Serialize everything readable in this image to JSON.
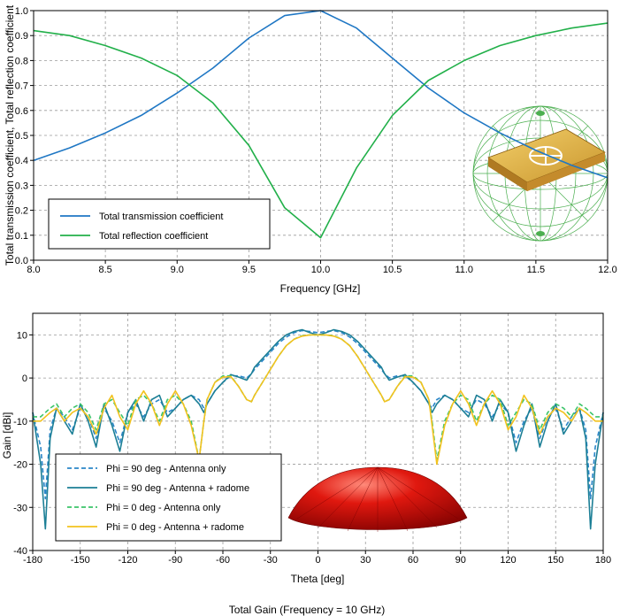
{
  "chart_data": [
    {
      "type": "line",
      "xlabel": "Frequency [GHz]",
      "ylabel": "Total transmission coefficient, Total reflection coefficient",
      "xlim": [
        8.0,
        12.0
      ],
      "ylim": [
        0.0,
        1.0
      ],
      "xticks": [
        8.0,
        8.5,
        9.0,
        9.5,
        10.0,
        10.5,
        11.0,
        11.5,
        12.0
      ],
      "xtick_labels": [
        "8.0",
        "8.5",
        "9.0",
        "9.5",
        "10.0",
        "10.5",
        "11.0",
        "11.5",
        "12.0"
      ],
      "yticks": [
        0.0,
        0.1,
        0.2,
        0.3,
        0.4,
        0.5,
        0.6,
        0.7,
        0.8,
        0.9,
        1.0
      ],
      "ytick_labels": [
        "0.0",
        "0.1",
        "0.2",
        "0.3",
        "0.4",
        "0.5",
        "0.6",
        "0.7",
        "0.8",
        "0.9",
        "1.0"
      ],
      "grid": true,
      "legend_position": "bottom-left",
      "inset": "antenna-model-with-far-field-sphere",
      "x": [
        8.0,
        8.25,
        8.5,
        8.75,
        9.0,
        9.25,
        9.5,
        9.75,
        10.0,
        10.25,
        10.5,
        10.75,
        11.0,
        11.25,
        11.5,
        11.75,
        12.0
      ],
      "series": [
        {
          "name": "Total transmission coefficient",
          "color": "#1f77c4",
          "values": [
            0.4,
            0.45,
            0.51,
            0.58,
            0.67,
            0.77,
            0.89,
            0.98,
            1.0,
            0.93,
            0.81,
            0.69,
            0.59,
            0.51,
            0.44,
            0.38,
            0.33
          ]
        },
        {
          "name": "Total reflection coefficient",
          "color": "#22b04a",
          "values": [
            0.92,
            0.9,
            0.86,
            0.81,
            0.74,
            0.63,
            0.46,
            0.21,
            0.09,
            0.37,
            0.58,
            0.72,
            0.8,
            0.86,
            0.9,
            0.93,
            0.95
          ]
        }
      ]
    },
    {
      "type": "line",
      "xlabel": "Theta [deg]",
      "ylabel": "Gain [dBi]",
      "title": "Total Gain (Frequency = 10 GHz)",
      "xlim": [
        -180,
        180
      ],
      "ylim": [
        -40,
        15
      ],
      "xticks": [
        -180,
        -150,
        -120,
        -90,
        -60,
        -30,
        0,
        30,
        60,
        90,
        120,
        150,
        180
      ],
      "xtick_labels": [
        "-180",
        "-150",
        "-120",
        "-90",
        "-60",
        "-30",
        "0",
        "30",
        "60",
        "90",
        "120",
        "150",
        "180"
      ],
      "yticks": [
        -40,
        -30,
        -20,
        -10,
        0,
        10
      ],
      "ytick_labels": [
        "-40",
        "-30",
        "-20",
        "-10",
        "0",
        "10"
      ],
      "grid": true,
      "legend_position": "bottom-left",
      "inset": "red-radome-dome",
      "x": [
        -180,
        -175,
        -172,
        -169,
        -165,
        -160,
        -155,
        -150,
        -145,
        -140,
        -135,
        -130,
        -125,
        -120,
        -115,
        -110,
        -105,
        -100,
        -95,
        -90,
        -85,
        -80,
        -75,
        -72,
        -70,
        -65,
        -60,
        -55,
        -50,
        -45,
        -42,
        -40,
        -35,
        -30,
        -25,
        -20,
        -15,
        -10,
        -5,
        0,
        5,
        10,
        15,
        20,
        25,
        30,
        35,
        40,
        42,
        45,
        50,
        55,
        60,
        65,
        70,
        72,
        75,
        80,
        85,
        90,
        95,
        100,
        105,
        110,
        115,
        120,
        125,
        130,
        135,
        140,
        145,
        150,
        155,
        160,
        165,
        169,
        172,
        175,
        180
      ],
      "series": [
        {
          "name": "Phi = 90 deg - Antenna only",
          "color": "#2b86c8",
          "dash": "dashed",
          "values": [
            -8,
            -16,
            -28,
            -12,
            -7,
            -9,
            -12,
            -7,
            -9,
            -14,
            -7,
            -10,
            -15,
            -8,
            -6,
            -9,
            -6,
            -5,
            -8,
            -7,
            -5,
            -4,
            -5,
            -7,
            -6,
            -3,
            -1,
            0.5,
            0.5,
            0,
            1,
            2,
            4,
            6,
            8,
            9.5,
            10.5,
            11,
            10.8,
            10.5,
            10.8,
            11,
            10.5,
            9.5,
            8,
            6,
            4,
            2,
            1,
            0,
            0.5,
            0.5,
            -1,
            -3,
            -6,
            -7,
            -5,
            -4,
            -5,
            -7,
            -8,
            -5,
            -6,
            -9,
            -6,
            -8,
            -15,
            -10,
            -7,
            -14,
            -9,
            -7,
            -12,
            -9,
            -7,
            -12,
            -28,
            -16,
            -8
          ]
        },
        {
          "name": "Phi = 90 deg - Antenna + radome",
          "color": "#1c7f96",
          "dash": "solid",
          "values": [
            -8,
            -20,
            -35,
            -14,
            -7,
            -10,
            -13,
            -6,
            -10,
            -16,
            -6,
            -11,
            -17,
            -8,
            -5,
            -10,
            -5,
            -4,
            -9,
            -7,
            -5,
            -4,
            -6,
            -8,
            -6,
            -3,
            -1,
            0.8,
            0.2,
            -0.5,
            1,
            2.5,
            4.5,
            6.5,
            8.5,
            10,
            10.8,
            11.2,
            10.5,
            10,
            10.5,
            11.2,
            10.8,
            10,
            8.5,
            6.5,
            4.5,
            2.5,
            1,
            -0.5,
            0.2,
            0.8,
            -1,
            -3,
            -6,
            -8,
            -6,
            -4,
            -5,
            -7,
            -9,
            -4,
            -5,
            -10,
            -5,
            -8,
            -17,
            -11,
            -6,
            -16,
            -10,
            -6,
            -13,
            -10,
            -7,
            -14,
            -35,
            -20,
            -8
          ]
        },
        {
          "name": "Phi = 0 deg - Antenna only",
          "color": "#3cc46a",
          "dash": "dashed",
          "values": [
            -9,
            -9,
            -8,
            -7,
            -6,
            -9,
            -7,
            -6,
            -8,
            -12,
            -6,
            -5,
            -8,
            -11,
            -5,
            -4,
            -6,
            -10,
            -5,
            -4,
            -6,
            -10,
            -19,
            -10,
            -5,
            -1,
            0.5,
            0.5,
            -2,
            -5,
            -5.5,
            -4,
            -1,
            2,
            5,
            7.5,
            9,
            9.8,
            10,
            10,
            10,
            9.8,
            9,
            7.5,
            5,
            2,
            -1,
            -4,
            -5.5,
            -5,
            -2,
            0.5,
            0.5,
            -1,
            -5,
            -10,
            -19,
            -10,
            -6,
            -4,
            -5,
            -10,
            -6,
            -4,
            -5,
            -11,
            -8,
            -5,
            -6,
            -12,
            -8,
            -6,
            -7,
            -9,
            -6,
            -7,
            -8,
            -9,
            -9
          ]
        },
        {
          "name": "Phi = 0 deg - Antenna + radome",
          "color": "#f2c21e",
          "dash": "solid",
          "values": [
            -10,
            -10,
            -9,
            -8,
            -7,
            -10,
            -8,
            -7,
            -9,
            -13,
            -7,
            -4,
            -9,
            -12,
            -6,
            -3,
            -6,
            -11,
            -6,
            -3,
            -6,
            -11,
            -19,
            -10,
            -5,
            -1,
            0.2,
            0.3,
            -2,
            -5,
            -5.5,
            -4,
            -1,
            2,
            5,
            7.5,
            9,
            9.7,
            10,
            10,
            10,
            9.7,
            9,
            7.5,
            5,
            2,
            -1,
            -4,
            -5.5,
            -5,
            -2,
            0.3,
            0.2,
            -1,
            -5,
            -11,
            -20,
            -11,
            -6,
            -3,
            -6,
            -11,
            -6,
            -3,
            -6,
            -12,
            -9,
            -4,
            -7,
            -13,
            -9,
            -7,
            -8,
            -10,
            -7,
            -8,
            -9,
            -10,
            -10
          ]
        }
      ]
    }
  ]
}
